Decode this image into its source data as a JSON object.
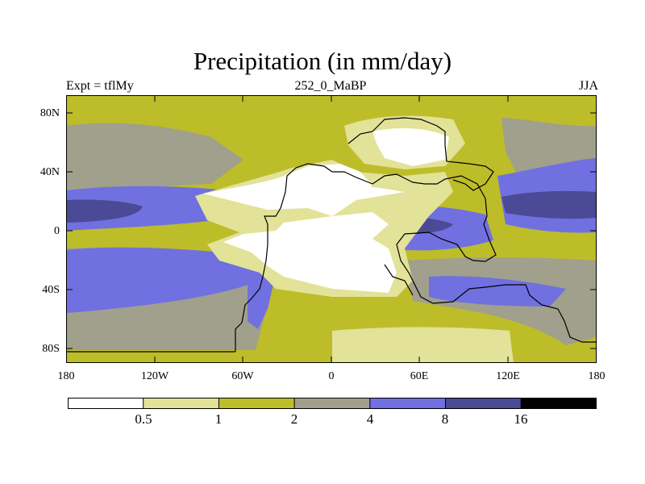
{
  "title": "Precipitation (in mm/day)",
  "subtitle_left": "Expt = tflMy",
  "subtitle_center": "252_0_MaBP",
  "subtitle_right": "JJA",
  "y_ticks": [
    "80N",
    "40N",
    "0",
    "40S",
    "80S"
  ],
  "x_ticks": [
    "180",
    "120W",
    "60W",
    "0",
    "60E",
    "120E",
    "180"
  ],
  "colorbar": {
    "colors": [
      "#ffffff",
      "#e2e299",
      "#bdbd2a",
      "#a0a08c",
      "#7070e0",
      "#4a4a96",
      "#000000"
    ],
    "labels": [
      "0.5",
      "1",
      "2",
      "4",
      "8",
      "16"
    ]
  },
  "map_colors": {
    "lt05": "#ffffff",
    "b05_1": "#e2e299",
    "b1_2": "#bdbd2a",
    "b2_4": "#a0a08c",
    "b4_8": "#7070e0",
    "b8_16": "#4a4a96"
  }
}
